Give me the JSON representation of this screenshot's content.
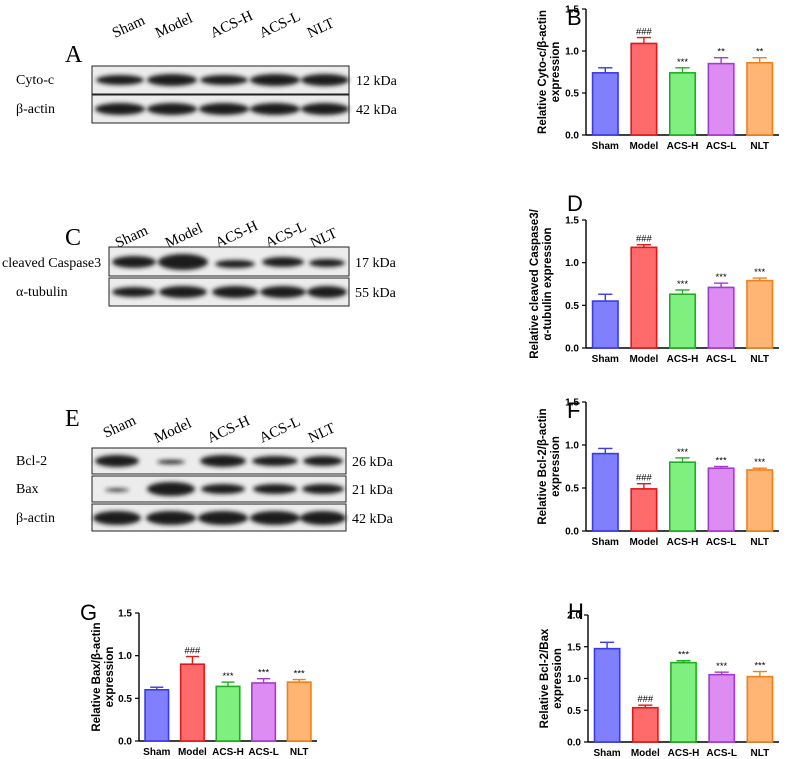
{
  "colors": {
    "bar_fills": [
      "#8080ff",
      "#ff6a6a",
      "#7ff07f",
      "#dd8cf2",
      "#ffb573"
    ],
    "bar_strokes": [
      "#3a3ae6",
      "#e01818",
      "#1fae1f",
      "#a53ad0",
      "#f0801c"
    ],
    "axis": "#000000"
  },
  "blots": [
    {
      "panel_letter": "A",
      "lanes": [
        "Sham",
        "Model",
        "ACS-H",
        "ACS-L",
        "NLT"
      ],
      "rows": [
        {
          "label": "Cyto-c",
          "size": "12 kDa"
        },
        {
          "label": "β-actin",
          "size": "42 kDa"
        }
      ]
    },
    {
      "panel_letter": "C",
      "lanes": [
        "Sham",
        "Model",
        "ACS-H",
        "ACS-L",
        "NLT"
      ],
      "rows": [
        {
          "label": "cleaved Caspase3",
          "size": "17 kDa"
        },
        {
          "label": "α-tubulin",
          "size": "55 kDa"
        }
      ]
    },
    {
      "panel_letter": "E",
      "lanes": [
        "Sham",
        "Model",
        "ACS-H",
        "ACS-L",
        "NLT"
      ],
      "rows": [
        {
          "label": "Bcl-2",
          "size": "26 kDa"
        },
        {
          "label": "Bax",
          "size": "21 kDa"
        },
        {
          "label": "β-actin",
          "size": "42 kDa"
        }
      ]
    }
  ],
  "chart_data": [
    {
      "panel_letter": "B",
      "type": "bar",
      "categories": [
        "Sham",
        "Model",
        "ACS-H",
        "ACS-L",
        "NLT"
      ],
      "values": [
        0.74,
        1.09,
        0.74,
        0.85,
        0.86
      ],
      "errors": [
        0.06,
        0.07,
        0.06,
        0.07,
        0.06
      ],
      "annotations": [
        "",
        "###",
        "***",
        "**",
        "**"
      ],
      "ylabel": [
        "Relative Cyto-c/β-actin",
        "expression"
      ],
      "ylim": [
        0,
        1.5
      ],
      "yticks": [
        "0.0",
        "0.5",
        "1.0",
        "1.5"
      ]
    },
    {
      "panel_letter": "D",
      "type": "bar",
      "categories": [
        "Sham",
        "Model",
        "ACS-H",
        "ACS-L",
        "NLT"
      ],
      "values": [
        0.55,
        1.18,
        0.63,
        0.71,
        0.79
      ],
      "errors": [
        0.08,
        0.03,
        0.05,
        0.05,
        0.03
      ],
      "annotations": [
        "",
        "###",
        "***",
        "***",
        "***"
      ],
      "ylabel": [
        "Relative cleaved Caspase3/",
        "α-tubulin expression"
      ],
      "ylim": [
        0,
        1.5
      ],
      "yticks": [
        "0.0",
        "0.5",
        "1.0",
        "1.5"
      ]
    },
    {
      "panel_letter": "F",
      "type": "bar",
      "categories": [
        "Sham",
        "Model",
        "ACS-H",
        "ACS-L",
        "NLT"
      ],
      "values": [
        0.9,
        0.49,
        0.8,
        0.73,
        0.71
      ],
      "errors": [
        0.06,
        0.06,
        0.05,
        0.02,
        0.02
      ],
      "annotations": [
        "",
        "###",
        "***",
        "***",
        "***"
      ],
      "ylabel": [
        "Relative Bcl-2/β-actin",
        "expression"
      ],
      "ylim": [
        0,
        1.5
      ],
      "yticks": [
        "0.0",
        "0.5",
        "1.0",
        "1.5"
      ]
    },
    {
      "panel_letter": "G",
      "type": "bar",
      "categories": [
        "Sham",
        "Model",
        "ACS-H",
        "ACS-L",
        "NLT"
      ],
      "values": [
        0.6,
        0.9,
        0.64,
        0.68,
        0.69
      ],
      "errors": [
        0.03,
        0.09,
        0.05,
        0.05,
        0.03
      ],
      "annotations": [
        "",
        "###",
        "***",
        "***",
        "***"
      ],
      "ylabel": [
        "Relative Bax/β-actin",
        "expression"
      ],
      "ylim": [
        0,
        1.5
      ],
      "yticks": [
        "0.0",
        "0.5",
        "1.0",
        "1.5"
      ]
    },
    {
      "panel_letter": "H",
      "type": "bar",
      "categories": [
        "Sham",
        "Model",
        "ACS-H",
        "ACS-L",
        "NLT"
      ],
      "values": [
        1.47,
        0.54,
        1.25,
        1.06,
        1.03
      ],
      "errors": [
        0.1,
        0.04,
        0.03,
        0.04,
        0.08
      ],
      "annotations": [
        "",
        "###",
        "***",
        "***",
        "***"
      ],
      "ylabel": [
        "Relative Bcl-2/Bax",
        "expression"
      ],
      "ylim": [
        0,
        2.0
      ],
      "yticks": [
        "0.0",
        "0.5",
        "1.0",
        "1.5",
        "2.0"
      ]
    }
  ]
}
